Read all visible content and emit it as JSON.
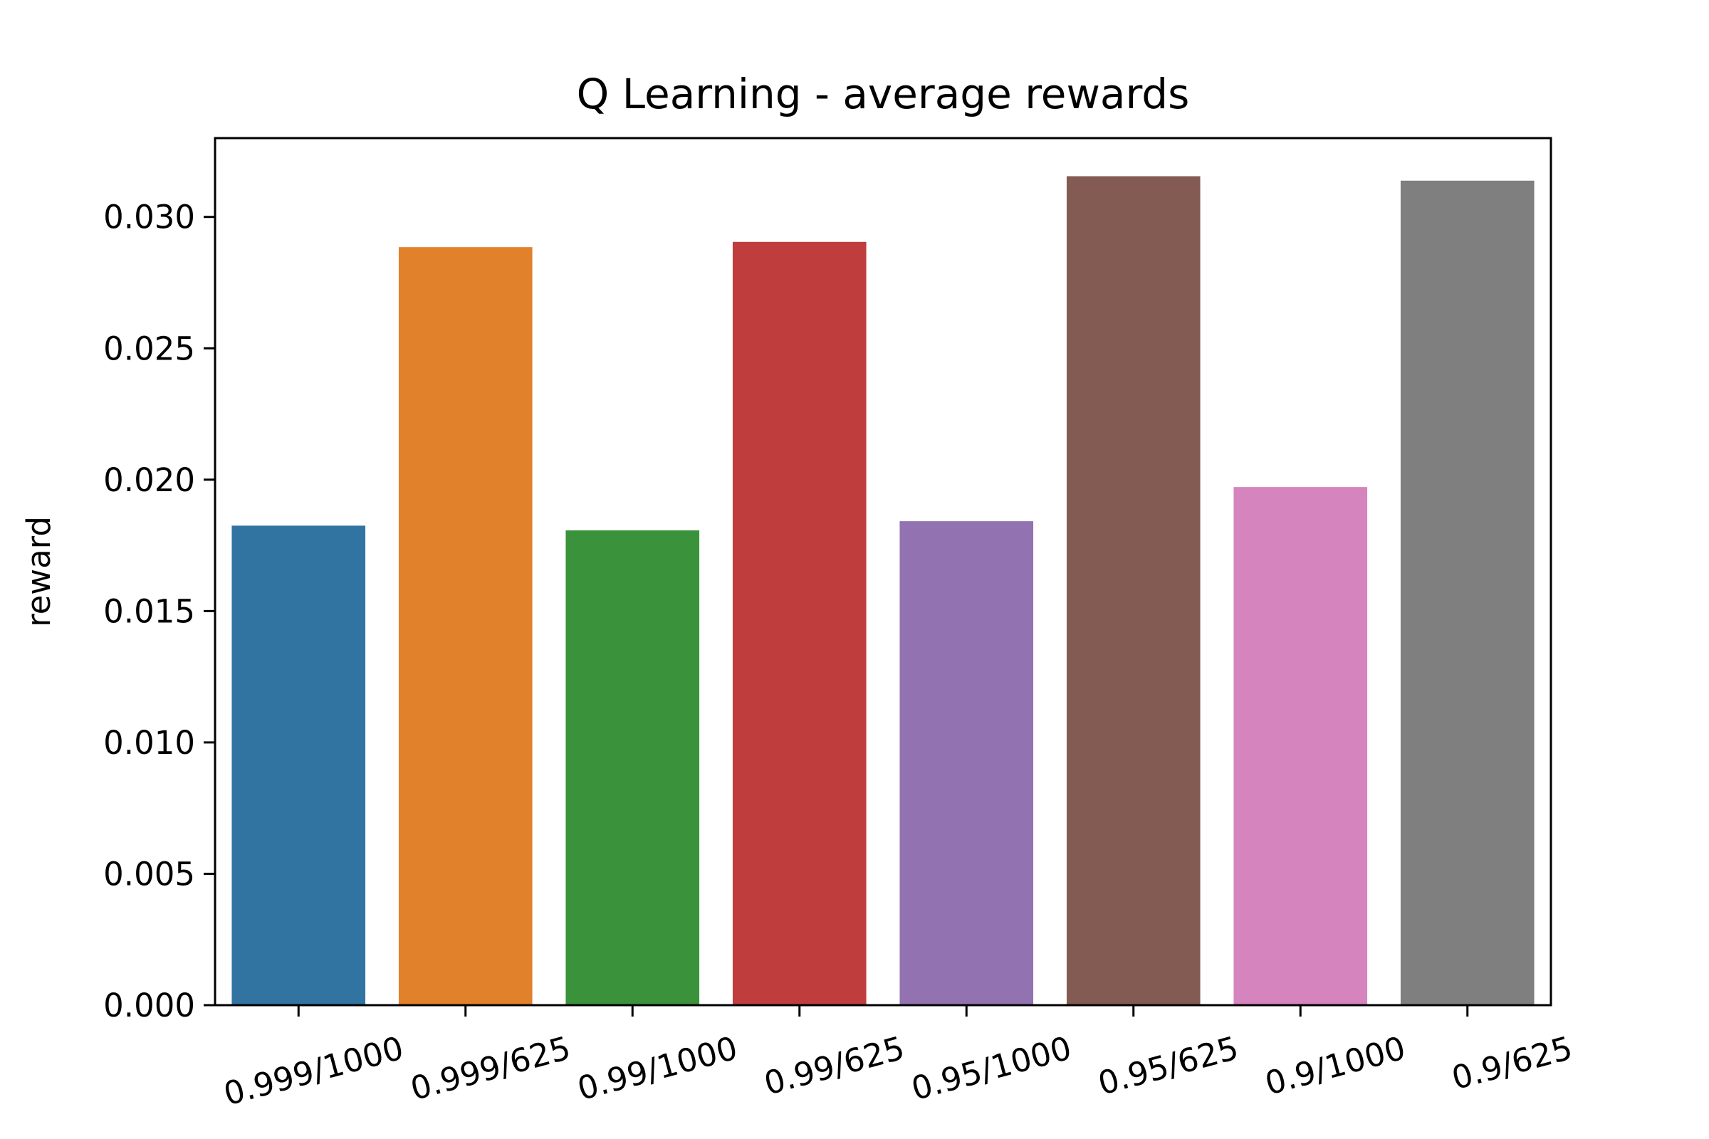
{
  "chart_data": {
    "type": "bar",
    "title": "Q Learning - average rewards",
    "xlabel": "",
    "ylabel": "reward",
    "categories": [
      "0.999/1000",
      "0.999/625",
      "0.99/1000",
      "0.99/625",
      "0.95/1000",
      "0.95/625",
      "0.9/1000",
      "0.9/625"
    ],
    "values": [
      0.01825,
      0.02885,
      0.01807,
      0.02905,
      0.01842,
      0.03155,
      0.01972,
      0.03138
    ],
    "colors": [
      "#3274a1",
      "#e1812c",
      "#3a923a",
      "#c03d3e",
      "#9372b2",
      "#845b53",
      "#d684bd",
      "#7f7f7f"
    ],
    "ylim": [
      0,
      0.033
    ],
    "yticks": [
      0,
      0.005,
      0.01,
      0.015,
      0.02,
      0.025,
      0.03
    ],
    "ytick_labels": [
      "0.000",
      "0.005",
      "0.010",
      "0.015",
      "0.020",
      "0.025",
      "0.030"
    ],
    "grid": false,
    "legend": "none"
  }
}
